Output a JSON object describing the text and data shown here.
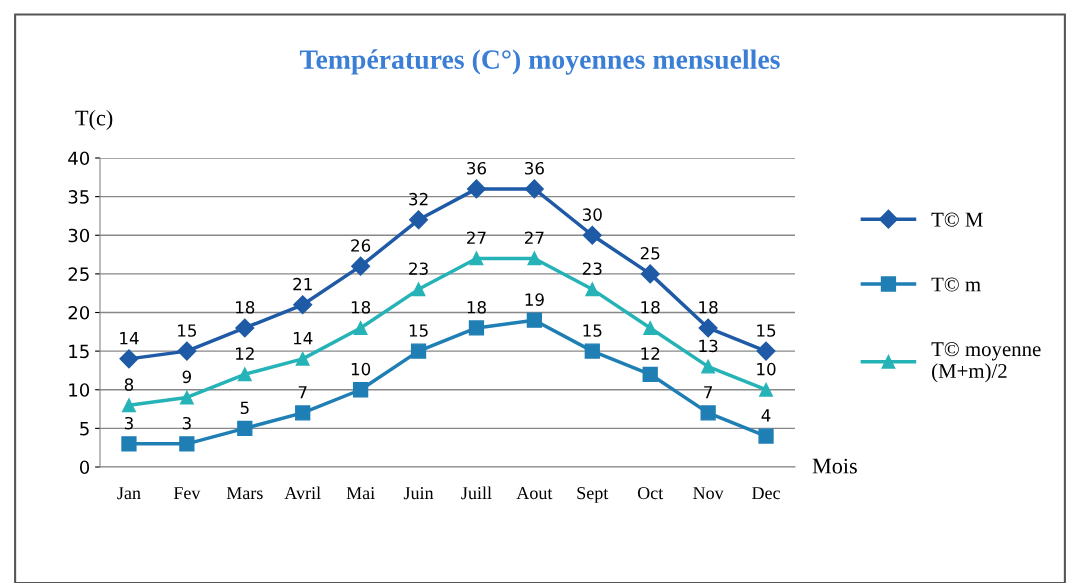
{
  "chart_data": {
    "type": "line",
    "title": "Températures (C°) moyennes mensuelles",
    "ylabel": "T(c)",
    "xlabel": "Mois",
    "categories": [
      "Jan",
      "Fev",
      "Mars",
      "Avril",
      "Mai",
      "Juin",
      "Juill",
      "Aout",
      "Sept",
      "Oct",
      "Nov",
      "Dec"
    ],
    "series": [
      {
        "name": "T© M",
        "color": "#1f5aa6",
        "marker": "diamond",
        "values": [
          14,
          15,
          18,
          21,
          26,
          32,
          36,
          36,
          30,
          25,
          18,
          15
        ]
      },
      {
        "name": "T© m",
        "color": "#1f7fb5",
        "marker": "square",
        "values": [
          3,
          3,
          5,
          7,
          10,
          15,
          18,
          19,
          15,
          12,
          7,
          4
        ]
      },
      {
        "name": "T© moyenne\n(M+m)/2",
        "color": "#26b3b8",
        "marker": "triangle",
        "values": [
          8,
          9,
          12,
          14,
          18,
          23,
          27,
          27,
          23,
          18,
          13,
          10
        ]
      }
    ],
    "ylim": [
      0,
      40
    ],
    "yticks": [
      0,
      5,
      10,
      15,
      20,
      25,
      30,
      35,
      40
    ],
    "grid": "y",
    "legend": "right",
    "data_labels": true,
    "line_style": "solid"
  }
}
